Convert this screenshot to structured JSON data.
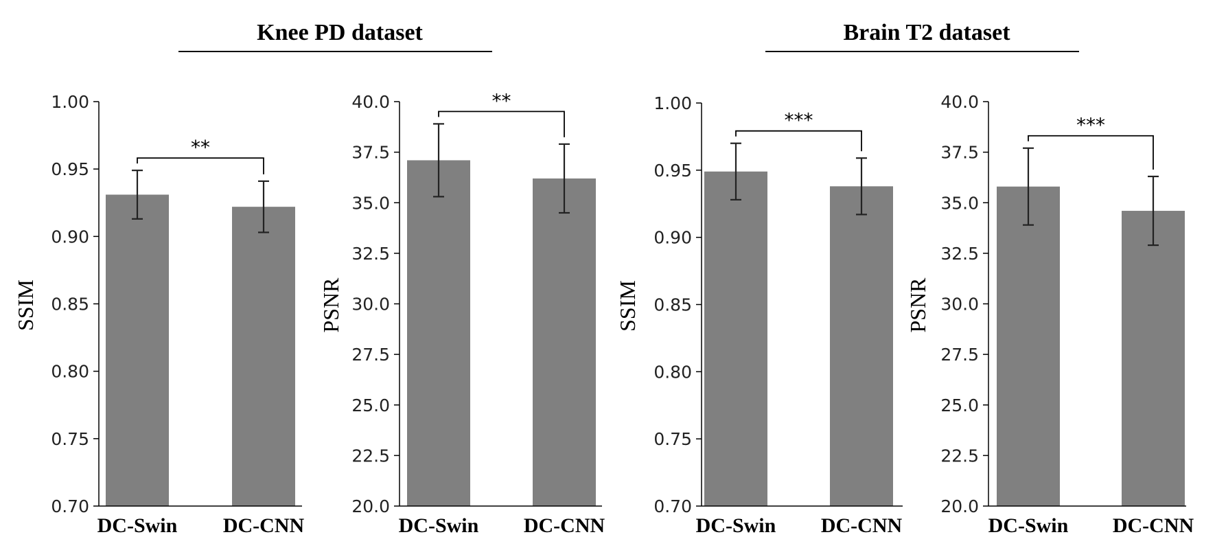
{
  "groups": [
    {
      "title": "Knee PD dataset"
    },
    {
      "title": "Brain T2 dataset"
    }
  ],
  "chart_data": [
    {
      "type": "bar",
      "group": "Knee PD dataset",
      "ylabel": "SSIM",
      "categories": [
        "DC-Swin",
        "DC-CNN"
      ],
      "values": [
        0.931,
        0.922
      ],
      "errors": [
        0.018,
        0.019
      ],
      "ylim": [
        0.7,
        1.0
      ],
      "ticks": [
        "0.70",
        "0.75",
        "0.80",
        "0.85",
        "0.90",
        "0.95",
        "1.00"
      ],
      "significance": "**",
      "color": "#808080",
      "grid": false
    },
    {
      "type": "bar",
      "group": "Knee PD dataset",
      "ylabel": "PSNR",
      "categories": [
        "DC-Swin",
        "DC-CNN"
      ],
      "values": [
        37.1,
        36.2
      ],
      "errors": [
        1.8,
        1.7
      ],
      "ylim": [
        20.0,
        40.0
      ],
      "ticks": [
        "20.0",
        "22.5",
        "25.0",
        "27.5",
        "30.0",
        "32.5",
        "35.0",
        "37.5",
        "40.0"
      ],
      "significance": "**",
      "color": "#808080",
      "grid": false
    },
    {
      "type": "bar",
      "group": "Brain T2 dataset",
      "ylabel": "SSIM",
      "categories": [
        "DC-Swin",
        "DC-CNN"
      ],
      "values": [
        0.949,
        0.938
      ],
      "errors": [
        0.021,
        0.021
      ],
      "ylim": [
        0.7,
        1.0
      ],
      "ticks": [
        "0.70",
        "0.75",
        "0.80",
        "0.85",
        "0.90",
        "0.95",
        "1.00"
      ],
      "significance": "***",
      "color": "#808080",
      "grid": false
    },
    {
      "type": "bar",
      "group": "Brain T2 dataset",
      "ylabel": "PSNR",
      "categories": [
        "DC-Swin",
        "DC-CNN"
      ],
      "values": [
        35.8,
        34.6
      ],
      "errors": [
        1.9,
        1.7
      ],
      "ylim": [
        20.0,
        40.0
      ],
      "ticks": [
        "20.0",
        "22.5",
        "25.0",
        "27.5",
        "30.0",
        "32.5",
        "35.0",
        "37.5",
        "40.0"
      ],
      "significance": "***",
      "color": "#808080",
      "grid": false
    }
  ]
}
